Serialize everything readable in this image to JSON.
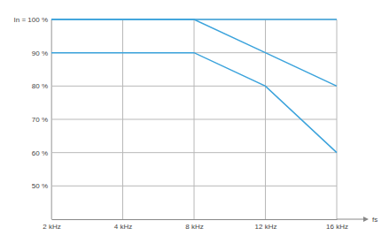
{
  "chart_data": {
    "type": "line",
    "categories": [
      "2 kHz",
      "4 kHz",
      "8 kHz",
      "12 kHz",
      "16 kHz"
    ],
    "x_label": "fs",
    "series": [
      {
        "name": null,
        "color": "#3ba3dc",
        "values": [
          100,
          100,
          100,
          100,
          100
        ]
      },
      {
        "name": null,
        "color": "#3ba3dc",
        "values": [
          100,
          100,
          100,
          90,
          80
        ]
      },
      {
        "name": null,
        "color": "#3ba3dc",
        "values": [
          90,
          90,
          90,
          80,
          60
        ]
      }
    ],
    "ylim": [
      40,
      100
    ],
    "yticks": [
      {
        "value": 50,
        "label": "50 %"
      },
      {
        "value": 60,
        "label": "60 %"
      },
      {
        "value": 70,
        "label": "70 %"
      },
      {
        "value": 80,
        "label": "80 %"
      },
      {
        "value": 90,
        "label": "90 %"
      },
      {
        "value": 100,
        "label": "In = 100 %"
      }
    ],
    "grid": true
  }
}
